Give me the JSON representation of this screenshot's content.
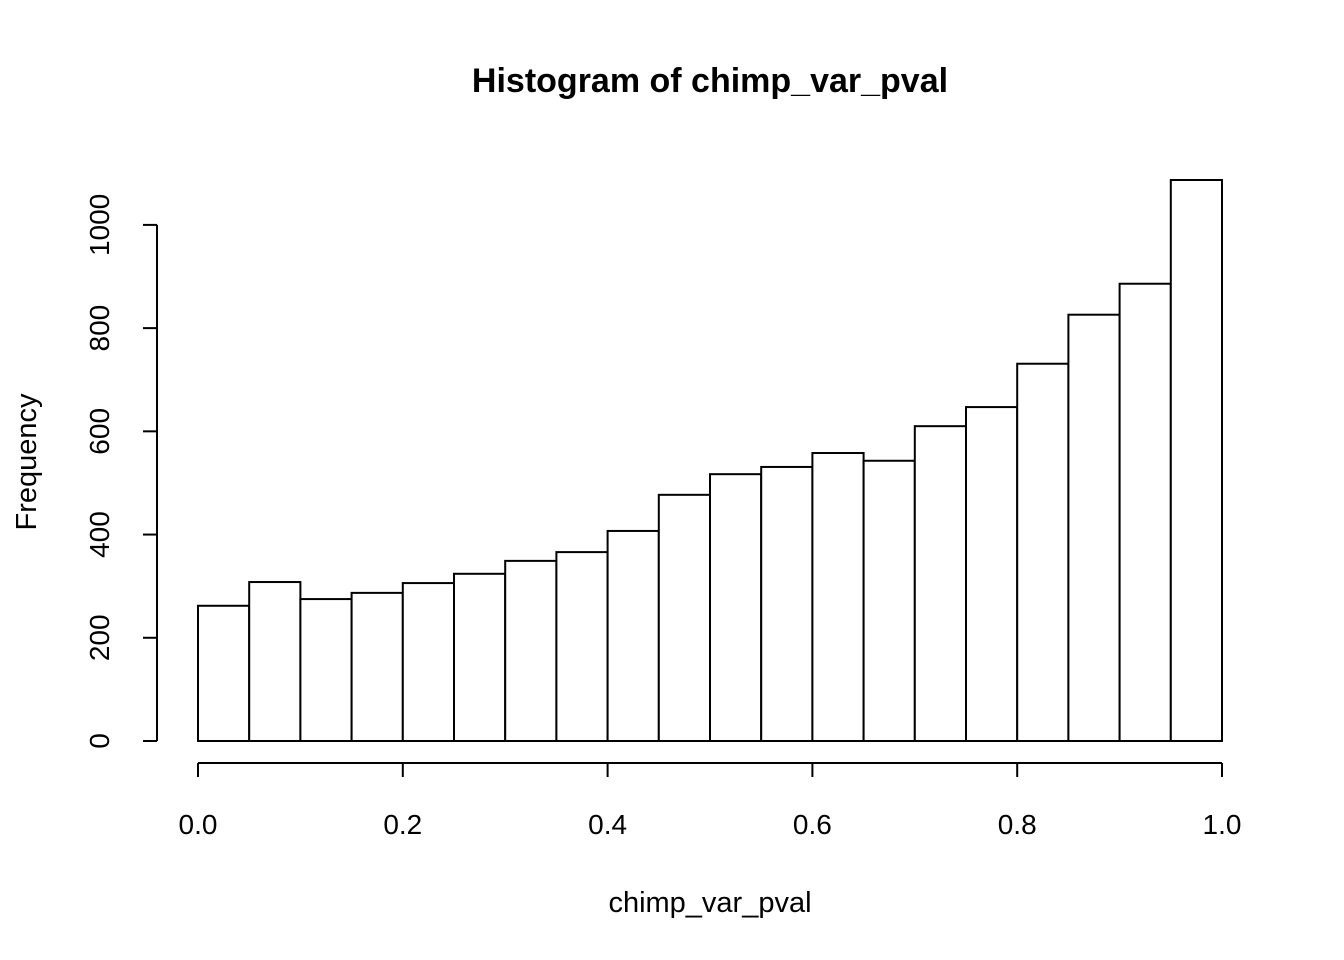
{
  "chart_data": {
    "type": "histogram",
    "title": "Histogram of chimp_var_pval",
    "xlabel": "chimp_var_pval",
    "ylabel": "Frequency",
    "bins": [
      0,
      0.05,
      0.1,
      0.15,
      0.2,
      0.25,
      0.3,
      0.35,
      0.4,
      0.45,
      0.5,
      0.55,
      0.6,
      0.65,
      0.7,
      0.75,
      0.8,
      0.85,
      0.9,
      0.95,
      1.0
    ],
    "values": [
      262,
      308,
      275,
      287,
      306,
      324,
      349,
      366,
      407,
      477,
      517,
      531,
      558,
      543,
      610,
      647,
      731,
      826,
      886,
      1087
    ],
    "color": "#ffffff",
    "xlim": [
      0,
      1
    ],
    "xticks": [
      {
        "value": 0,
        "label": "0.0"
      },
      0.2,
      0.4,
      0.6,
      0.8,
      {
        "value": 1,
        "label": "1.0"
      }
    ],
    "ylim": [
      0,
      1087
    ],
    "yticks": [
      0,
      200,
      400,
      600,
      800,
      1000
    ],
    "grid": false
  }
}
